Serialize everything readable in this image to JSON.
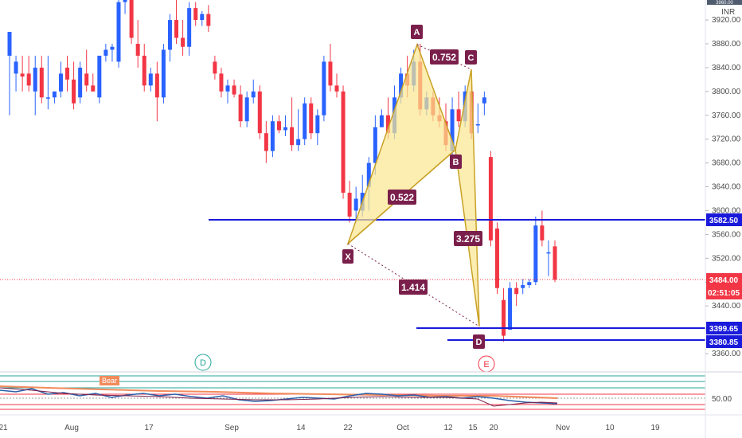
{
  "header": {
    "currency": "INR",
    "top_price_clipped": "3960.00"
  },
  "price_axis": {
    "ticks": [
      "3920.00",
      "3880.00",
      "3840.00",
      "3800.00",
      "3760.00",
      "3720.00",
      "3680.00",
      "3640.00",
      "3600.00",
      "3560.00",
      "3520.00",
      "3480.00",
      "3440.00",
      "3400.00",
      "3360.00"
    ]
  },
  "time_axis": {
    "labels": [
      "21",
      "Aug",
      "17",
      "Sep",
      "14",
      "22",
      "Oct",
      "12",
      "15",
      "20",
      "Nov",
      "10",
      "19"
    ]
  },
  "price_tags": {
    "resistance": "3582.50",
    "last_price": "3484.00",
    "countdown": "02:51:05",
    "support_1": "3399.65",
    "support_2": "3380.85"
  },
  "pattern": {
    "points": {
      "X": "X",
      "A": "A",
      "B": "B",
      "C": "C",
      "D": "D"
    },
    "ratios": {
      "xb": "0.522",
      "ac": "0.752",
      "bd": "3.275",
      "xd": "1.414"
    }
  },
  "markers": {
    "d_marker": "D",
    "e_marker": "E"
  },
  "indicator": {
    "level": "50.00",
    "badge": "Bear"
  },
  "colors": {
    "up": "#2962ff",
    "down": "#f23645",
    "pattern_fill": "#fbe58f",
    "label_bg": "#7a1f4b",
    "level_line": "#1a1adb",
    "e_marker": "#f23645",
    "d_marker": "#26a69a"
  },
  "chart_data": {
    "type": "candlestick",
    "y_unit": "INR",
    "ylim": [
      3340,
      3960
    ],
    "candles": [
      {
        "o": 3860,
        "h": 3900,
        "l": 3760,
        "c": 3900
      },
      {
        "o": 3830,
        "h": 3860,
        "l": 3800,
        "c": 3850
      },
      {
        "o": 3830,
        "h": 3860,
        "l": 3800,
        "c": 3825
      },
      {
        "o": 3830,
        "h": 3860,
        "l": 3800,
        "c": 3810
      },
      {
        "o": 3800,
        "h": 3860,
        "l": 3760,
        "c": 3840
      },
      {
        "o": 3840,
        "h": 3860,
        "l": 3780,
        "c": 3790
      },
      {
        "o": 3790,
        "h": 3860,
        "l": 3770,
        "c": 3790
      },
      {
        "o": 3790,
        "h": 3800,
        "l": 3780,
        "c": 3800
      },
      {
        "o": 3800,
        "h": 3850,
        "l": 3790,
        "c": 3830
      },
      {
        "o": 3840,
        "h": 3860,
        "l": 3800,
        "c": 3820
      },
      {
        "o": 3820,
        "h": 3850,
        "l": 3770,
        "c": 3780
      },
      {
        "o": 3790,
        "h": 3850,
        "l": 3780,
        "c": 3840
      },
      {
        "o": 3830,
        "h": 3870,
        "l": 3800,
        "c": 3810
      },
      {
        "o": 3810,
        "h": 3830,
        "l": 3800,
        "c": 3800
      },
      {
        "o": 3790,
        "h": 3860,
        "l": 3780,
        "c": 3860
      },
      {
        "o": 3860,
        "h": 3880,
        "l": 3850,
        "c": 3870
      },
      {
        "o": 3870,
        "h": 3880,
        "l": 3850,
        "c": 3875
      },
      {
        "o": 3850,
        "h": 3960,
        "l": 3840,
        "c": 3950
      },
      {
        "o": 3950,
        "h": 3960,
        "l": 3930,
        "c": 3955
      },
      {
        "o": 3955,
        "h": 3960,
        "l": 3880,
        "c": 3890
      },
      {
        "o": 3880,
        "h": 3920,
        "l": 3840,
        "c": 3860
      },
      {
        "o": 3860,
        "h": 3880,
        "l": 3800,
        "c": 3810
      },
      {
        "o": 3810,
        "h": 3840,
        "l": 3800,
        "c": 3830
      },
      {
        "o": 3830,
        "h": 3850,
        "l": 3750,
        "c": 3790
      },
      {
        "o": 3790,
        "h": 3880,
        "l": 3780,
        "c": 3870
      },
      {
        "o": 3870,
        "h": 3930,
        "l": 3850,
        "c": 3920
      },
      {
        "o": 3920,
        "h": 3960,
        "l": 3880,
        "c": 3890
      },
      {
        "o": 3890,
        "h": 3920,
        "l": 3860,
        "c": 3875
      },
      {
        "o": 3875,
        "h": 3950,
        "l": 3860,
        "c": 3940
      },
      {
        "o": 3940,
        "h": 3950,
        "l": 3910,
        "c": 3920
      },
      {
        "o": 3920,
        "h": 3935,
        "l": 3910,
        "c": 3930
      },
      {
        "o": 3930,
        "h": 3945,
        "l": 3900,
        "c": 3910
      },
      {
        "o": 3850,
        "h": 3860,
        "l": 3820,
        "c": 3830
      },
      {
        "o": 3830,
        "h": 3840,
        "l": 3790,
        "c": 3800
      },
      {
        "o": 3800,
        "h": 3820,
        "l": 3780,
        "c": 3810
      },
      {
        "o": 3810,
        "h": 3820,
        "l": 3790,
        "c": 3795
      },
      {
        "o": 3795,
        "h": 3810,
        "l": 3740,
        "c": 3750
      },
      {
        "o": 3750,
        "h": 3800,
        "l": 3740,
        "c": 3790
      },
      {
        "o": 3790,
        "h": 3820,
        "l": 3780,
        "c": 3800
      },
      {
        "o": 3800,
        "h": 3810,
        "l": 3720,
        "c": 3730
      },
      {
        "o": 3730,
        "h": 3750,
        "l": 3680,
        "c": 3700
      },
      {
        "o": 3700,
        "h": 3760,
        "l": 3690,
        "c": 3750
      },
      {
        "o": 3750,
        "h": 3760,
        "l": 3730,
        "c": 3735
      },
      {
        "o": 3735,
        "h": 3760,
        "l": 3725,
        "c": 3740
      },
      {
        "o": 3740,
        "h": 3790,
        "l": 3700,
        "c": 3710
      },
      {
        "o": 3710,
        "h": 3770,
        "l": 3700,
        "c": 3720
      },
      {
        "o": 3720,
        "h": 3790,
        "l": 3710,
        "c": 3780
      },
      {
        "o": 3780,
        "h": 3790,
        "l": 3720,
        "c": 3730
      },
      {
        "o": 3730,
        "h": 3770,
        "l": 3710,
        "c": 3760
      },
      {
        "o": 3760,
        "h": 3860,
        "l": 3750,
        "c": 3850
      },
      {
        "o": 3850,
        "h": 3880,
        "l": 3800,
        "c": 3810
      },
      {
        "o": 3810,
        "h": 3830,
        "l": 3790,
        "c": 3800
      },
      {
        "o": 3800,
        "h": 3810,
        "l": 3620,
        "c": 3630
      },
      {
        "o": 3630,
        "h": 3650,
        "l": 3580,
        "c": 3590
      },
      {
        "o": 3600,
        "h": 3640,
        "l": 3580,
        "c": 3620
      },
      {
        "o": 3600,
        "h": 3660,
        "l": 3590,
        "c": 3630
      },
      {
        "o": 3640,
        "h": 3690,
        "l": 3600,
        "c": 3680
      },
      {
        "o": 3680,
        "h": 3760,
        "l": 3660,
        "c": 3740
      },
      {
        "o": 3740,
        "h": 3770,
        "l": 3740,
        "c": 3760
      },
      {
        "o": 3760,
        "h": 3790,
        "l": 3720,
        "c": 3730
      },
      {
        "o": 3730,
        "h": 3810,
        "l": 3720,
        "c": 3790
      },
      {
        "o": 3790,
        "h": 3840,
        "l": 3780,
        "c": 3830
      },
      {
        "o": 3830,
        "h": 3860,
        "l": 3790,
        "c": 3810
      },
      {
        "o": 3810,
        "h": 3870,
        "l": 3800,
        "c": 3850
      },
      {
        "o": 3850,
        "h": 3880,
        "l": 3760,
        "c": 3770
      },
      {
        "o": 3770,
        "h": 3800,
        "l": 3760,
        "c": 3790
      },
      {
        "o": 3790,
        "h": 3800,
        "l": 3750,
        "c": 3760
      },
      {
        "o": 3760,
        "h": 3790,
        "l": 3740,
        "c": 3750
      },
      {
        "o": 3750,
        "h": 3780,
        "l": 3700,
        "c": 3710
      },
      {
        "o": 3700,
        "h": 3790,
        "l": 3690,
        "c": 3770
      },
      {
        "o": 3770,
        "h": 3800,
        "l": 3740,
        "c": 3750
      },
      {
        "o": 3750,
        "h": 3810,
        "l": 3740,
        "c": 3800
      },
      {
        "o": 3800,
        "h": 3810,
        "l": 3720,
        "c": 3730
      },
      {
        "o": 3745,
        "h": 3780,
        "l": 3730,
        "c": 3745
      },
      {
        "o": 3780,
        "h": 3800,
        "l": 3760,
        "c": 3790
      },
      {
        "o": 3690,
        "h": 3700,
        "l": 3540,
        "c": 3550
      },
      {
        "o": 3570,
        "h": 3580,
        "l": 3460,
        "c": 3470
      },
      {
        "o": 3450,
        "h": 3470,
        "l": 3380,
        "c": 3390
      },
      {
        "o": 3400,
        "h": 3480,
        "l": 3400,
        "c": 3470
      },
      {
        "o": 3470,
        "h": 3480,
        "l": 3440,
        "c": 3460
      },
      {
        "o": 3470,
        "h": 3485,
        "l": 3460,
        "c": 3475
      },
      {
        "o": 3475,
        "h": 3485,
        "l": 3470,
        "c": 3480
      },
      {
        "o": 3480,
        "h": 3590,
        "l": 3475,
        "c": 3575
      },
      {
        "o": 3575,
        "h": 3600,
        "l": 3540,
        "c": 3550
      },
      {
        "o": 3530,
        "h": 3550,
        "l": 3490,
        "c": 3530
      },
      {
        "o": 3540,
        "h": 3550,
        "l": 3480,
        "c": 3484
      }
    ],
    "levels": [
      {
        "name": "resistance",
        "value": 3582.5
      },
      {
        "name": "support_1",
        "value": 3399.65
      },
      {
        "name": "support_2",
        "value": 3380.85
      },
      {
        "name": "last_price",
        "value": 3484.0
      }
    ],
    "pattern_points": {
      "X": {
        "price": 3545
      },
      "A": {
        "price": 3880
      },
      "B": {
        "price": 3705
      },
      "C": {
        "price": 3840
      },
      "D": {
        "price": 3400
      }
    }
  }
}
